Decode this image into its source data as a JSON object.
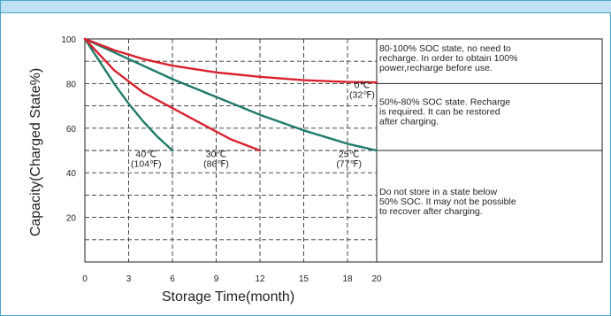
{
  "chart_data": {
    "type": "line",
    "xlabel": "Storage Time(month)",
    "ylabel": "Capacity(Charged State%)",
    "xlim": [
      0,
      20
    ],
    "ylim": [
      0,
      100
    ],
    "x_ticks": [
      "0",
      "3",
      "6",
      "9",
      "12",
      "15",
      "18",
      "20"
    ],
    "y_ticks": [
      "20",
      "40",
      "60",
      "80",
      "100"
    ],
    "grid": true,
    "series": [
      {
        "name": "40℃(104℉)",
        "label_lines": [
          "40℃",
          "(104℉)"
        ],
        "color": "#1f7a6a",
        "x": [
          0,
          1,
          2,
          3,
          4,
          5,
          6
        ],
        "y": [
          100,
          90,
          80,
          71,
          63,
          56,
          50
        ]
      },
      {
        "name": "30℃(86℉)",
        "label_lines": [
          "30℃",
          "(86℉)"
        ],
        "color": "#d9222e",
        "x": [
          0,
          2,
          4,
          6,
          8,
          10,
          12
        ],
        "y": [
          100,
          86,
          76,
          69,
          62,
          55,
          50
        ]
      },
      {
        "name": "25℃(77℉)",
        "label_lines": [
          "25℃",
          "(77℉)"
        ],
        "color": "#1f7a6a",
        "x": [
          0,
          3,
          6,
          9,
          12,
          15,
          18,
          20
        ],
        "y": [
          100,
          91,
          82,
          74,
          66,
          59,
          53,
          50
        ]
      },
      {
        "name": "0℃(32℉)",
        "label_lines": [
          "0℃",
          "(32℉)"
        ],
        "color": "#d9222e",
        "x": [
          0,
          2,
          4,
          6,
          9,
          12,
          15,
          18,
          20
        ],
        "y": [
          100,
          95,
          91,
          88,
          85,
          83,
          81.5,
          80.7,
          80.5
        ]
      }
    ],
    "annotations": [
      {
        "id": "zone-high",
        "range": [
          80,
          100
        ],
        "lines": [
          "80-100% SOC state,  no need to",
          "recharge. In order to obtain 100%",
          "power,recharge before use."
        ]
      },
      {
        "id": "zone-mid",
        "range": [
          50,
          80
        ],
        "lines": [
          "50%-80% SOC state. Recharge",
          "is required. It can be restored",
          "after charging."
        ]
      },
      {
        "id": "zone-low",
        "range": [
          0,
          50
        ],
        "lines": [
          "Do not store in a state below",
          "50% SOC. It may not be  possible",
          "to recover after charging."
        ]
      }
    ]
  }
}
